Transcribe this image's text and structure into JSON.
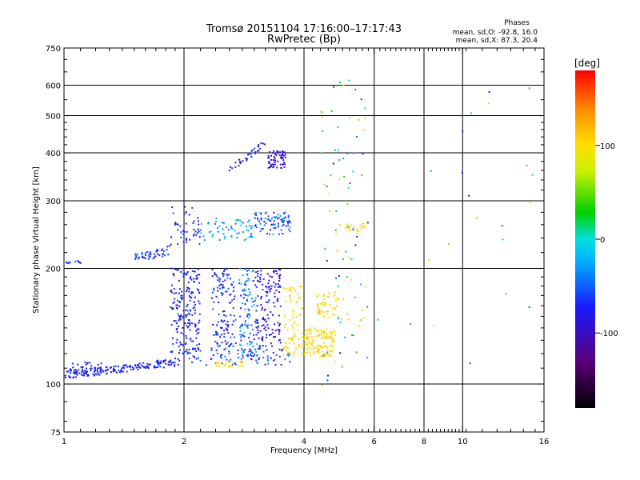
{
  "chart_data": {
    "type": "scatter",
    "title": "Tromsø 20151104 17:16:00–17:17:43",
    "subtitle": "RwPretec (Bp)",
    "xlabel": "Frequency [MHz]",
    "ylabel": "Stationary phase Virtual Height [km]",
    "x_scale": "log",
    "y_scale": "log",
    "xlim": [
      1,
      16
    ],
    "ylim": [
      75,
      750
    ],
    "x_ticks": [
      1,
      2,
      4,
      6,
      8,
      10,
      16
    ],
    "y_ticks": [
      75,
      100,
      200,
      300,
      400,
      500,
      600,
      750
    ],
    "grid": true,
    "phase_stats": {
      "heading": "Phases",
      "o_line": "mean, sd,O: -92.8, 16.0",
      "x_line": "mean, sd,X:  87.3, 20.4"
    },
    "colorbar": {
      "label": "[deg]",
      "range": [
        -180,
        180
      ],
      "ticks": [
        100,
        0,
        -100
      ],
      "stops": [
        "#000000",
        "#5a007a",
        "#1a1aff",
        "#00b4ff",
        "#00e0e0",
        "#00d000",
        "#c8f000",
        "#ffe000",
        "#ff9000",
        "#ff0000"
      ]
    },
    "clusters": [
      {
        "f": [
          1.0,
          1.95
        ],
        "h": [
          103,
          108
        ],
        "rise": 0.08,
        "n": 170,
        "phase": [
          -110,
          -90
        ]
      },
      {
        "f": [
          1.03,
          1.25
        ],
        "h": [
          107,
          114
        ],
        "rise": 0,
        "n": 30,
        "phase": [
          -110,
          -90
        ]
      },
      {
        "f": [
          1.95,
          3.7
        ],
        "h": [
          112,
          124
        ],
        "rise": 0,
        "n": 90,
        "phase": [
          -110,
          -70
        ]
      },
      {
        "f": [
          2.4,
          2.8
        ],
        "h": [
          111,
          114
        ],
        "rise": 0,
        "n": 22,
        "phase": [
          95,
          110
        ]
      },
      {
        "f": [
          1.85,
          2.2
        ],
        "h": [
          120,
          200
        ],
        "rise": 0,
        "n": 190,
        "phase": [
          -115,
          -85
        ]
      },
      {
        "f": [
          2.35,
          2.7
        ],
        "h": [
          125,
          200
        ],
        "rise": 0,
        "n": 120,
        "phase": [
          -115,
          -80
        ]
      },
      {
        "f": [
          2.75,
          3.05
        ],
        "h": [
          118,
          200
        ],
        "rise": 0,
        "n": 110,
        "phase": [
          -110,
          -40
        ]
      },
      {
        "f": [
          3.05,
          3.5
        ],
        "h": [
          125,
          200
        ],
        "rise": 0,
        "n": 130,
        "phase": [
          -130,
          -90
        ]
      },
      {
        "f": [
          3.55,
          4.0
        ],
        "h": [
          118,
          180
        ],
        "rise": 0,
        "n": 80,
        "phase": [
          80,
          115
        ]
      },
      {
        "f": [
          4.0,
          4.8
        ],
        "h": [
          118,
          140
        ],
        "rise": 0,
        "n": 130,
        "phase": [
          95,
          115
        ]
      },
      {
        "f": [
          4.3,
          4.9
        ],
        "h": [
          148,
          175
        ],
        "rise": 0,
        "n": 45,
        "phase": [
          90,
          130
        ]
      },
      {
        "f": [
          1.0,
          1.12
        ],
        "h": [
          206,
          210
        ],
        "rise": 0,
        "n": 14,
        "phase": [
          -100,
          -80
        ]
      },
      {
        "f": [
          1.5,
          1.85
        ],
        "h": [
          206,
          218
        ],
        "rise": 0.05,
        "n": 45,
        "phase": [
          -110,
          -80
        ]
      },
      {
        "f": [
          1.85,
          2.2
        ],
        "h": [
          230,
          290
        ],
        "rise": 0,
        "n": 45,
        "phase": [
          -110,
          -85
        ]
      },
      {
        "f": [
          2.2,
          3.0
        ],
        "h": [
          235,
          270
        ],
        "rise": 0,
        "n": 60,
        "phase": [
          -80,
          -40
        ]
      },
      {
        "f": [
          3.0,
          3.7
        ],
        "h": [
          245,
          280
        ],
        "rise": 0,
        "n": 80,
        "phase": [
          -110,
          -60
        ]
      },
      {
        "f": [
          2.6,
          3.2
        ],
        "h": [
          355,
          372
        ],
        "rise": 0.15,
        "n": 35,
        "phase": [
          -110,
          -90
        ]
      },
      {
        "f": [
          3.25,
          3.6
        ],
        "h": [
          365,
          405
        ],
        "rise": 0,
        "n": 60,
        "phase": [
          -125,
          -100
        ]
      },
      {
        "f": [
          5.1,
          5.7
        ],
        "h": [
          250,
          262
        ],
        "rise": 0,
        "n": 22,
        "phase": [
          95,
          115
        ]
      },
      {
        "f": [
          4.4,
          5.8
        ],
        "h": [
          95,
          620
        ],
        "rise": 0,
        "n": 90,
        "phase": [
          -120,
          120
        ]
      },
      {
        "f": [
          6.0,
          15.0
        ],
        "h": [
          110,
          590
        ],
        "rise": 0,
        "n": 22,
        "phase": [
          -120,
          150
        ]
      }
    ]
  }
}
